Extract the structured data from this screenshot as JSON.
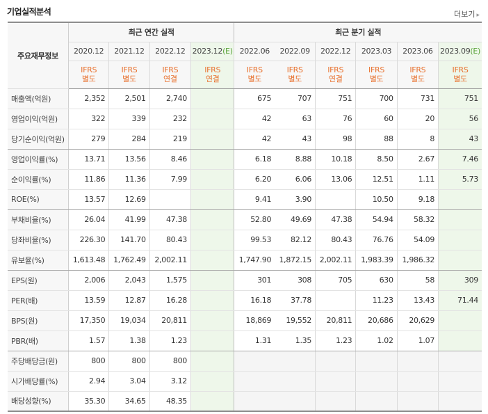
{
  "page": {
    "title": "기업실적분석",
    "more_label": "더보기",
    "more_icon": "chevron-right-icon"
  },
  "header": {
    "row_header": "주요재무정보",
    "annual_label": "최근 연간 실적",
    "quarterly_label": "최근 분기 실적",
    "annual_periods": [
      {
        "period": "2020.12",
        "est": "",
        "basis_1": "IFRS",
        "basis_2": "별도"
      },
      {
        "period": "2021.12",
        "est": "",
        "basis_1": "IFRS",
        "basis_2": "별도"
      },
      {
        "period": "2022.12",
        "est": "",
        "basis_1": "IFRS",
        "basis_2": "연결"
      },
      {
        "period": "2023.12",
        "est": "(E)",
        "basis_1": "IFRS",
        "basis_2": "연결"
      }
    ],
    "quarterly_periods": [
      {
        "period": "2022.06",
        "est": "",
        "basis_1": "IFRS",
        "basis_2": "별도"
      },
      {
        "period": "2022.09",
        "est": "",
        "basis_1": "IFRS",
        "basis_2": "별도"
      },
      {
        "period": "2022.12",
        "est": "",
        "basis_1": "IFRS",
        "basis_2": "연결"
      },
      {
        "period": "2023.03",
        "est": "",
        "basis_1": "IFRS",
        "basis_2": "별도"
      },
      {
        "period": "2023.06",
        "est": "",
        "basis_1": "IFRS",
        "basis_2": "별도"
      },
      {
        "period": "2023.09",
        "est": "(E)",
        "basis_1": "IFRS",
        "basis_2": "별도"
      }
    ]
  },
  "rows": [
    {
      "label": "매출액(억원)",
      "annual": [
        "2,352",
        "2,501",
        "2,740",
        ""
      ],
      "quarterly": [
        "675",
        "707",
        "751",
        "700",
        "731",
        "751"
      ]
    },
    {
      "label": "영업이익(억원)",
      "annual": [
        "322",
        "339",
        "232",
        ""
      ],
      "quarterly": [
        "42",
        "63",
        "76",
        "60",
        "20",
        "56"
      ]
    },
    {
      "label": "당기순이익(억원)",
      "annual": [
        "279",
        "284",
        "219",
        ""
      ],
      "quarterly": [
        "42",
        "43",
        "98",
        "88",
        "8",
        "43"
      ]
    },
    {
      "label": "영업이익률(%)",
      "annual": [
        "13.71",
        "13.56",
        "8.46",
        ""
      ],
      "quarterly": [
        "6.18",
        "8.88",
        "10.18",
        "8.50",
        "2.67",
        "7.46"
      ]
    },
    {
      "label": "순이익률(%)",
      "annual": [
        "11.86",
        "11.36",
        "7.99",
        ""
      ],
      "quarterly": [
        "6.20",
        "6.06",
        "13.06",
        "12.51",
        "1.11",
        "5.73"
      ]
    },
    {
      "label": "ROE(%)",
      "annual": [
        "13.57",
        "12.69",
        "",
        ""
      ],
      "quarterly": [
        "9.41",
        "3.90",
        "",
        "10.50",
        "9.18",
        ""
      ]
    },
    {
      "label": "부채비율(%)",
      "annual": [
        "26.04",
        "41.99",
        "47.38",
        ""
      ],
      "quarterly": [
        "52.80",
        "49.69",
        "47.38",
        "54.94",
        "58.32",
        ""
      ]
    },
    {
      "label": "당좌비율(%)",
      "annual": [
        "226.30",
        "141.70",
        "80.43",
        ""
      ],
      "quarterly": [
        "99.53",
        "82.12",
        "80.43",
        "76.76",
        "54.09",
        ""
      ]
    },
    {
      "label": "유보율(%)",
      "annual": [
        "1,613.48",
        "1,762.49",
        "2,002.11",
        ""
      ],
      "quarterly": [
        "1,747.90",
        "1,872.15",
        "2,002.11",
        "1,983.39",
        "1,986.32",
        ""
      ]
    },
    {
      "label": "EPS(원)",
      "annual": [
        "2,006",
        "2,043",
        "1,575",
        ""
      ],
      "quarterly": [
        "301",
        "308",
        "705",
        "630",
        "58",
        "309"
      ]
    },
    {
      "label": "PER(배)",
      "annual": [
        "13.59",
        "12.87",
        "16.28",
        ""
      ],
      "quarterly": [
        "16.18",
        "37.78",
        "",
        "11.23",
        "13.43",
        "71.44"
      ]
    },
    {
      "label": "BPS(원)",
      "annual": [
        "17,350",
        "19,034",
        "20,811",
        ""
      ],
      "quarterly": [
        "18,869",
        "19,552",
        "20,811",
        "20,686",
        "20,629",
        ""
      ]
    },
    {
      "label": "PBR(배)",
      "annual": [
        "1.57",
        "1.38",
        "1.23",
        ""
      ],
      "quarterly": [
        "1.31",
        "1.35",
        "1.23",
        "1.02",
        "1.07",
        ""
      ]
    },
    {
      "label": "주당배당금(원)",
      "annual": [
        "800",
        "800",
        "800",
        ""
      ],
      "quarterly": null
    },
    {
      "label": "시가배당률(%)",
      "annual": [
        "2.94",
        "3.04",
        "3.12",
        ""
      ],
      "quarterly": null
    },
    {
      "label": "배당성향(%)",
      "annual": [
        "35.30",
        "34.65",
        "48.35",
        ""
      ],
      "quarterly": null
    }
  ],
  "group_end_rows": [
    2,
    5,
    8,
    12
  ],
  "colors": {
    "estimate_bg": "#eef7ea",
    "basis_text": "#e8712e",
    "estimate_mark": "#5aa33a"
  }
}
